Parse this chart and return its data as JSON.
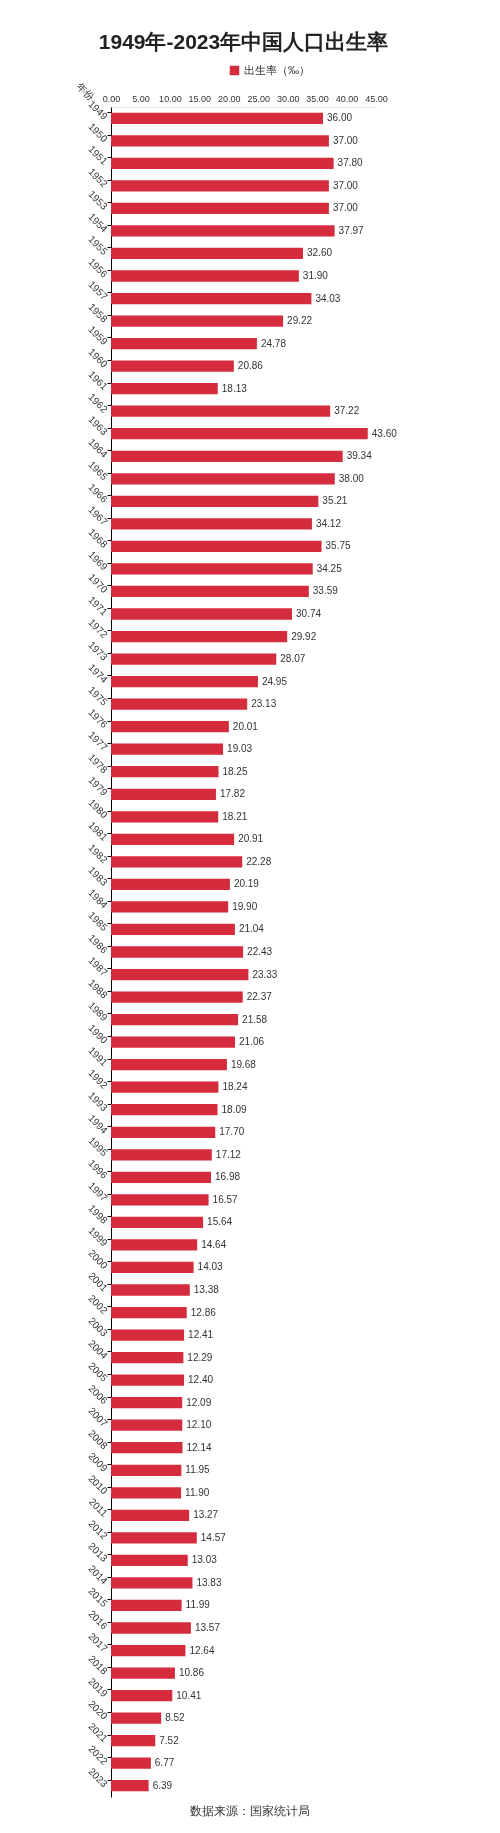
{
  "chart_data": {
    "type": "bar",
    "orientation": "horizontal",
    "title": "1949年-2023年中国人口出生率",
    "ylabel": "年份",
    "categories": [
      "1949",
      "1950",
      "1951",
      "1952",
      "1953",
      "1954",
      "1955",
      "1956",
      "1957",
      "1958",
      "1959",
      "1960",
      "1961",
      "1962",
      "1963",
      "1964",
      "1965",
      "1966",
      "1967",
      "1968",
      "1969",
      "1970",
      "1971",
      "1972",
      "1973",
      "1974",
      "1975",
      "1976",
      "1977",
      "1978",
      "1979",
      "1980",
      "1981",
      "1982",
      "1983",
      "1984",
      "1985",
      "1986",
      "1987",
      "1988",
      "1989",
      "1990",
      "1991",
      "1992",
      "1993",
      "1994",
      "1995",
      "1996",
      "1997",
      "1998",
      "1999",
      "2000",
      "2001",
      "2002",
      "2003",
      "2004",
      "2005",
      "2006",
      "2007",
      "2008",
      "2009",
      "2010",
      "2011",
      "2012",
      "2013",
      "2014",
      "2015",
      "2016",
      "2017",
      "2018",
      "2019",
      "2020",
      "2021",
      "2022",
      "2023"
    ],
    "series": [
      {
        "name": "出生率（‰）",
        "color": "#d42b3d",
        "values": [
          36.0,
          37.0,
          37.8,
          37.0,
          37.0,
          37.97,
          32.6,
          31.9,
          34.03,
          29.22,
          24.78,
          20.86,
          18.13,
          37.22,
          43.6,
          39.34,
          38.0,
          35.21,
          34.12,
          35.75,
          34.25,
          33.59,
          30.74,
          29.92,
          28.07,
          24.95,
          23.13,
          20.01,
          19.03,
          18.25,
          17.82,
          18.21,
          20.91,
          22.28,
          20.19,
          19.9,
          21.04,
          22.43,
          23.33,
          22.37,
          21.58,
          21.06,
          19.68,
          18.24,
          18.09,
          17.7,
          17.12,
          16.98,
          16.57,
          15.64,
          14.64,
          14.03,
          13.38,
          12.86,
          12.41,
          12.29,
          12.4,
          12.09,
          12.1,
          12.14,
          11.95,
          11.9,
          13.27,
          14.57,
          13.03,
          13.83,
          11.99,
          13.57,
          12.64,
          10.86,
          10.41,
          8.52,
          7.52,
          6.77,
          6.39
        ],
        "value_labels": [
          "36.00",
          "37.00",
          "37.80",
          "37.00",
          "37.00",
          "37.97",
          "32.60",
          "31.90",
          "34.03",
          "29.22",
          "24.78",
          "20.86",
          "18.13",
          "37.22",
          "43.60",
          "39.34",
          "38.00",
          "35.21",
          "34.12",
          "35.75",
          "34.25",
          "33.59",
          "30.74",
          "29.92",
          "28.07",
          "24.95",
          "23.13",
          "20.01",
          "19.03",
          "18.25",
          "17.82",
          "18.21",
          "20.91",
          "22.28",
          "20.19",
          "19.90",
          "21.04",
          "22.43",
          "23.33",
          "22.37",
          "21.58",
          "21.06",
          "19.68",
          "18.24",
          "18.09",
          "17.70",
          "17.12",
          "16.98",
          "16.57",
          "15.64",
          "14.64",
          "14.03",
          "13.38",
          "12.86",
          "12.41",
          "12.29",
          "12.40",
          "12.09",
          "12.10",
          "12.14",
          "11.95",
          "11.90",
          "13.27",
          "14.57",
          "13.03",
          "13.83",
          "11.99",
          "13.57",
          "12.64",
          "10.86",
          "10.41",
          "8.52",
          "7.52",
          "6.77",
          "6.39"
        ]
      }
    ],
    "xlim": [
      0,
      45
    ],
    "xticks": [
      {
        "value": 0,
        "label": "0.00"
      },
      {
        "value": 5,
        "label": "5.00"
      },
      {
        "value": 10,
        "label": "10.00"
      },
      {
        "value": 15,
        "label": "15.00"
      },
      {
        "value": 20,
        "label": "20.00"
      },
      {
        "value": 25,
        "label": "25.00"
      },
      {
        "value": 30,
        "label": "30.00"
      },
      {
        "value": 35,
        "label": "35.00"
      },
      {
        "value": 40,
        "label": "40.00"
      },
      {
        "value": 45,
        "label": "45.00"
      }
    ],
    "legend": "top",
    "annotations": [
      "数据来源：国家统计局"
    ]
  }
}
